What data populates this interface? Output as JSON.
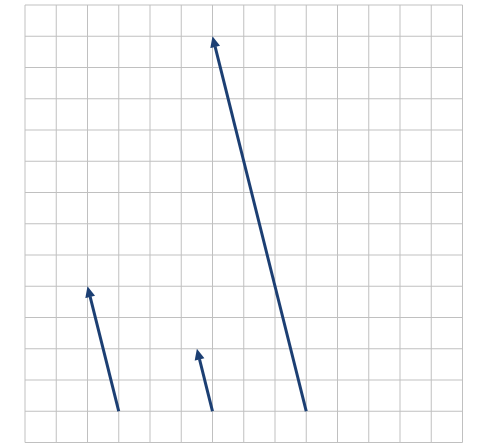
{
  "grid": {
    "columns": 14,
    "rows": 14,
    "line_color": "#c0c0c0",
    "background": "#ffffff"
  },
  "arrow_color": "#1c3f73",
  "vectors": [
    {
      "from": [
        3,
        1
      ],
      "to": [
        2,
        5
      ]
    },
    {
      "from": [
        6,
        1
      ],
      "to": [
        5.5,
        3
      ]
    },
    {
      "from": [
        9,
        1
      ],
      "to": [
        6,
        13
      ]
    }
  ]
}
